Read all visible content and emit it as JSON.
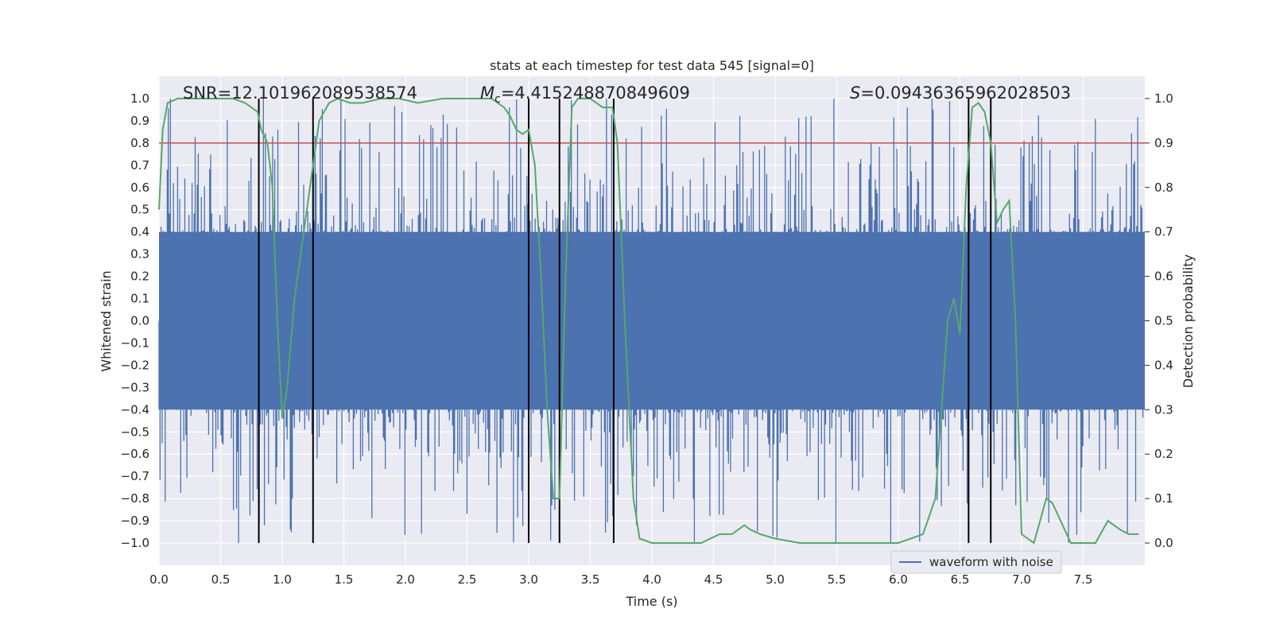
{
  "chart_data": {
    "type": "line",
    "title": "stats at each timestep for test data 545 [signal=0]",
    "xlabel": "Time (s)",
    "ylabel": "Whitened strain",
    "y2label": "Detection probability",
    "xlim": [
      0.0,
      8.0
    ],
    "ylim": [
      -1.1,
      1.1
    ],
    "y2lim": [
      -0.05,
      1.05
    ],
    "xticks": [
      "0.0",
      "0.5",
      "1.0",
      "1.5",
      "2.0",
      "2.5",
      "3.0",
      "3.5",
      "4.0",
      "4.5",
      "5.0",
      "5.5",
      "6.0",
      "6.5",
      "7.0",
      "7.5"
    ],
    "yticks": [
      "1.0",
      "0.9",
      "0.8",
      "0.7",
      "0.6",
      "0.5",
      "0.4",
      "0.3",
      "0.2",
      "0.1",
      "0.0",
      "-0.1",
      "-0.2",
      "-0.3",
      "-0.4",
      "-0.5",
      "-0.6",
      "-0.7",
      "-0.8",
      "-0.9",
      "-1.0"
    ],
    "y2ticks": [
      "1.0",
      "0.9",
      "0.8",
      "0.7",
      "0.6",
      "0.5",
      "0.4",
      "0.3",
      "0.2",
      "0.1",
      "0.0"
    ],
    "annotations": {
      "snr": "SNR=12.101962089538574",
      "mc_symbol": "M",
      "mc_sub": "c",
      "mc_value": "=4.415248870849609",
      "s_symbol": "S",
      "s_value": "=0.09436365962028503"
    },
    "threshold": {
      "value": 0.9,
      "axis": "right",
      "color": "#c44e52"
    },
    "vertical_lines_x": [
      0.81,
      1.25,
      3.0,
      3.25,
      3.69,
      6.57,
      6.75
    ],
    "legend": {
      "label": "waveform with noise",
      "position": "bottom-right"
    },
    "series": [
      {
        "name": "waveform with noise",
        "axis": "left",
        "color": "#4c72b0",
        "envelope": {
          "x_start": 0.0,
          "x_end": 8.0,
          "core_amplitude": 0.4,
          "max_amplitude": 1.0
        }
      },
      {
        "name": "detection probability",
        "axis": "right",
        "color": "#55a868",
        "x": [
          0.0,
          0.03,
          0.07,
          0.15,
          0.3,
          0.5,
          0.6,
          0.7,
          0.8,
          0.83,
          0.88,
          0.92,
          0.96,
          1.0,
          1.04,
          1.1,
          1.2,
          1.3,
          1.38,
          1.45,
          1.55,
          1.65,
          1.8,
          1.95,
          2.1,
          2.3,
          2.5,
          2.7,
          2.8,
          2.85,
          2.9,
          2.95,
          3.0,
          3.05,
          3.1,
          3.15,
          3.2,
          3.25,
          3.3,
          3.35,
          3.4,
          3.5,
          3.6,
          3.68,
          3.72,
          3.78,
          3.85,
          3.9,
          4.0,
          4.2,
          4.4,
          4.55,
          4.65,
          4.7,
          4.75,
          4.8,
          4.88,
          5.0,
          5.2,
          5.5,
          6.0,
          6.1,
          6.2,
          6.3,
          6.35,
          6.4,
          6.45,
          6.5,
          6.55,
          6.6,
          6.65,
          6.7,
          6.75,
          6.8,
          6.85,
          6.9,
          6.95,
          7.0,
          7.05,
          7.1,
          7.15,
          7.2,
          7.25,
          7.3,
          7.4,
          7.5,
          7.6,
          7.7,
          7.75,
          7.8,
          7.87,
          7.95
        ],
        "y": [
          0.75,
          0.93,
          0.99,
          1.0,
          1.0,
          1.0,
          1.0,
          0.99,
          0.97,
          0.93,
          0.9,
          0.8,
          0.5,
          0.28,
          0.35,
          0.55,
          0.75,
          0.95,
          0.99,
          1.0,
          0.99,
          0.99,
          1.0,
          1.0,
          0.99,
          1.0,
          1.0,
          1.0,
          0.98,
          0.96,
          0.93,
          0.92,
          0.93,
          0.85,
          0.6,
          0.3,
          0.1,
          0.1,
          0.6,
          0.98,
          1.0,
          1.0,
          0.98,
          0.98,
          0.9,
          0.5,
          0.1,
          0.01,
          0.0,
          0.0,
          0.0,
          0.02,
          0.02,
          0.03,
          0.04,
          0.03,
          0.02,
          0.01,
          0.0,
          0.0,
          0.0,
          0.01,
          0.02,
          0.1,
          0.3,
          0.5,
          0.55,
          0.47,
          0.8,
          0.98,
          0.99,
          0.97,
          0.9,
          0.72,
          0.75,
          0.77,
          0.5,
          0.02,
          0.01,
          0.0,
          0.05,
          0.1,
          0.09,
          0.06,
          0.0,
          0.0,
          0.0,
          0.05,
          0.04,
          0.03,
          0.02,
          0.02
        ]
      }
    ]
  }
}
